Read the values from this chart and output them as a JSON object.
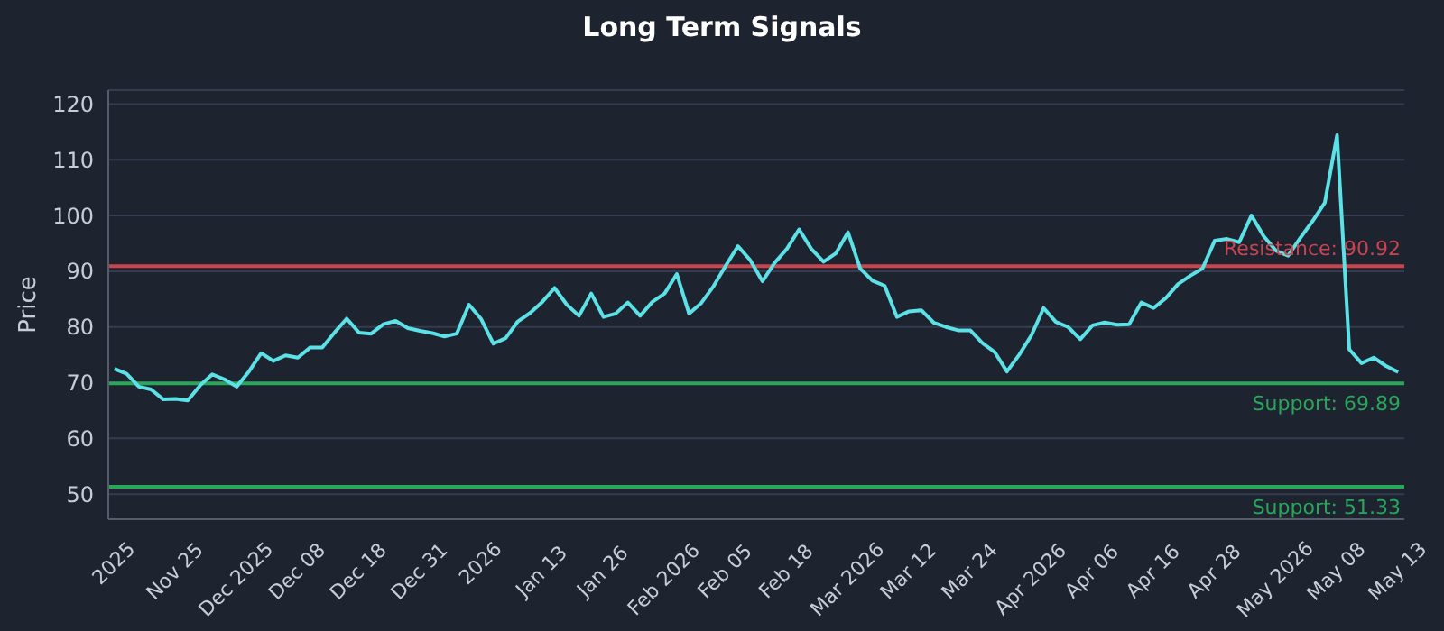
{
  "chart_data": {
    "type": "line",
    "title": "Long Term Signals",
    "ylabel": "Price",
    "categories": [
      "2025",
      null,
      null,
      null,
      null,
      "Nov 25",
      null,
      null,
      null,
      null,
      "Dec 2025",
      null,
      null,
      null,
      null,
      "Dec 08",
      null,
      null,
      null,
      null,
      "Dec 18",
      null,
      null,
      null,
      null,
      "Dec 31",
      null,
      null,
      null,
      null,
      "2026",
      null,
      null,
      null,
      null,
      "Jan 13",
      null,
      null,
      null,
      null,
      "Jan 26",
      null,
      null,
      null,
      null,
      "Feb 2026",
      null,
      null,
      null,
      null,
      "Feb 05",
      null,
      null,
      null,
      null,
      "Feb 18",
      null,
      null,
      null,
      null,
      "Mar 2026",
      null,
      null,
      null,
      null,
      "Mar 12",
      null,
      null,
      null,
      null,
      "Mar 24",
      null,
      null,
      null,
      null,
      "Apr 2026",
      null,
      null,
      null,
      null,
      "Apr 06",
      null,
      null,
      null,
      null,
      "Apr 16",
      null,
      null,
      null,
      null,
      "Apr 28",
      null,
      null,
      null,
      null,
      "May 2026",
      null,
      null,
      null,
      null,
      "May 08",
      null,
      null,
      null,
      null,
      "May 13"
    ],
    "series": [
      {
        "color": "#5ce1e6",
        "values": [
          72.5,
          71.6,
          69.3,
          68.8,
          67,
          67.1,
          66.8,
          69.5,
          71.5,
          70.6,
          69.3,
          72,
          75.3,
          73.9,
          74.9,
          74.5,
          76.3,
          76.3,
          79,
          81.5,
          79,
          78.8,
          80.5,
          81.1,
          79.8,
          79.3,
          78.9,
          78.3,
          78.8,
          84,
          81.4,
          77,
          78,
          81,
          82.5,
          84.5,
          87,
          84,
          82,
          86,
          81.8,
          82.4,
          84.4,
          82,
          84.5,
          86,
          89.5,
          82.4,
          84.3,
          87.3,
          91,
          94.5,
          92,
          88.2,
          91.5,
          94,
          97.5,
          94,
          91.7,
          93.2,
          97,
          90.5,
          88.3,
          87.4,
          81.8,
          82.8,
          83,
          80.8,
          80,
          79.4,
          79.4,
          77.1,
          75.5,
          72,
          75,
          78.5,
          83.4,
          80.9,
          80,
          77.8,
          80.3,
          80.8,
          80.4,
          80.5,
          84.4,
          83.4,
          85.2,
          87.7,
          89.2,
          90.5,
          95.5,
          95.8,
          95.2,
          100,
          96.3,
          93.7,
          92.8,
          96,
          99,
          102.3,
          114.4,
          76,
          73.5,
          74.5,
          73,
          71.9
        ]
      }
    ],
    "ylim": [
      45.5,
      122.5
    ],
    "yticks": [
      50,
      60,
      70,
      80,
      90,
      100,
      110,
      120
    ],
    "ref_lines": [
      {
        "axis": "y",
        "value": 90.92,
        "label": "Resistance: 90.92",
        "color": "#c9444f"
      },
      {
        "axis": "y",
        "value": 69.89,
        "label": "Support: 69.89",
        "color": "#2aa65a"
      },
      {
        "axis": "y",
        "value": 51.33,
        "label": "Support: 51.33",
        "color": "#2aa65a"
      }
    ],
    "grid": "y",
    "legend": false,
    "marker": "none",
    "line_style": "solid"
  }
}
